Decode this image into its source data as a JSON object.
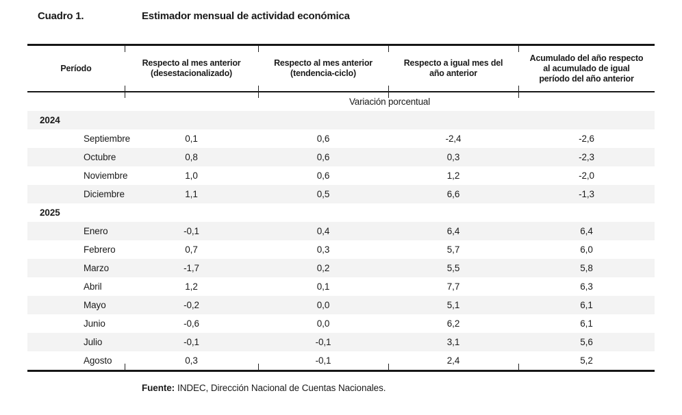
{
  "title": {
    "label": "Cuadro 1.",
    "text": "Estimador mensual de actividad económica"
  },
  "table": {
    "columns": [
      {
        "lines": [
          "Período"
        ]
      },
      {
        "lines": [
          "Respecto al mes anterior",
          "(desestacionalizado)"
        ]
      },
      {
        "lines": [
          "Respecto al mes anterior",
          "(tendencia-ciclo)"
        ]
      },
      {
        "lines": [
          "Respecto a igual mes del",
          "año anterior"
        ]
      },
      {
        "lines": [
          "Acumulado del año respecto",
          "al acumulado de igual",
          "período del año anterior"
        ]
      }
    ],
    "unit_row": "Variación porcentual",
    "rows": [
      {
        "type": "year",
        "label": "2024",
        "shaded": true
      },
      {
        "type": "month",
        "label": "Septiembre",
        "values": [
          "0,1",
          "0,6",
          "-2,4",
          "-2,6"
        ],
        "shaded": false
      },
      {
        "type": "month",
        "label": "Octubre",
        "values": [
          "0,8",
          "0,6",
          "0,3",
          "-2,3"
        ],
        "shaded": true
      },
      {
        "type": "month",
        "label": "Noviembre",
        "values": [
          "1,0",
          "0,6",
          "1,2",
          "-2,0"
        ],
        "shaded": false
      },
      {
        "type": "month",
        "label": "Diciembre",
        "values": [
          "1,1",
          "0,5",
          "6,6",
          "-1,3"
        ],
        "shaded": true
      },
      {
        "type": "year",
        "label": "2025",
        "shaded": false
      },
      {
        "type": "month",
        "label": "Enero",
        "values": [
          "-0,1",
          "0,4",
          "6,4",
          "6,4"
        ],
        "shaded": true
      },
      {
        "type": "month",
        "label": "Febrero",
        "values": [
          "0,7",
          "0,3",
          "5,7",
          "6,0"
        ],
        "shaded": false
      },
      {
        "type": "month",
        "label": "Marzo",
        "values": [
          "-1,7",
          "0,2",
          "5,5",
          "5,8"
        ],
        "shaded": true
      },
      {
        "type": "month",
        "label": "Abril",
        "values": [
          "1,2",
          "0,1",
          "7,7",
          "6,3"
        ],
        "shaded": false
      },
      {
        "type": "month",
        "label": "Mayo",
        "values": [
          "-0,2",
          "0,0",
          "5,1",
          "6,1"
        ],
        "shaded": true
      },
      {
        "type": "month",
        "label": "Junio",
        "values": [
          "-0,6",
          "0,0",
          "6,2",
          "6,1"
        ],
        "shaded": false
      },
      {
        "type": "month",
        "label": "Julio",
        "values": [
          "-0,1",
          "-0,1",
          "3,1",
          "5,6"
        ],
        "shaded": true
      },
      {
        "type": "month",
        "label": "Agosto",
        "values": [
          "0,3",
          "-0,1",
          "2,4",
          "5,2"
        ],
        "shaded": false
      }
    ]
  },
  "footer": {
    "label": "Fuente:",
    "text": "INDEC, Dirección Nacional de Cuentas Nacionales."
  },
  "colors": {
    "text": "#1a1a1a",
    "rule": "#161616",
    "zebra": "#f3f3f3"
  }
}
